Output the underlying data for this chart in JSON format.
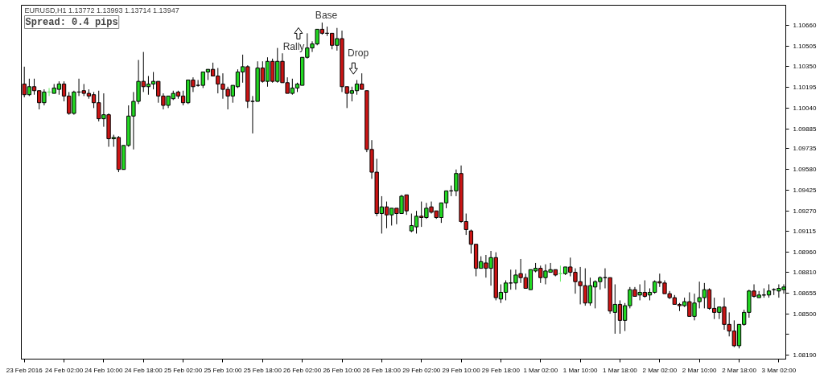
{
  "chart_data": {
    "type": "candlestick",
    "title": "EURUSD,H1  1.13772 1.13993 1.13714 1.13947",
    "annotations": [
      "Spread: 0.4 pips",
      "Base",
      "Rally",
      "Drop"
    ],
    "categories": [
      "23 Feb 2016",
      null,
      null,
      null,
      null,
      null,
      null,
      null,
      "24 Feb 02:00",
      null,
      null,
      null,
      null,
      null,
      null,
      null,
      "24 Feb 10:00",
      null,
      null,
      null,
      null,
      null,
      null,
      null,
      "24 Feb 18:00",
      null,
      null,
      null,
      null,
      null,
      null,
      null,
      "25 Feb 02:00",
      null,
      null,
      null,
      null,
      null,
      null,
      null,
      "25 Feb 10:00",
      null,
      null,
      null,
      null,
      null,
      null,
      null,
      "25 Feb 18:00",
      null,
      null,
      null,
      null,
      null,
      null,
      null,
      "26 Feb 02:00",
      null,
      null,
      null,
      null,
      null,
      null,
      null,
      "26 Feb 10:00",
      null,
      null,
      null,
      null,
      null,
      null,
      null,
      "26 Feb 18:00",
      null,
      null,
      null,
      null,
      null,
      null,
      null,
      "29 Feb 02:00",
      null,
      null,
      null,
      null,
      null,
      null,
      null,
      "29 Feb 10:00",
      null,
      null,
      null,
      null,
      null,
      null,
      null,
      "29 Feb 18:00",
      null,
      null,
      null,
      null,
      null,
      null,
      null,
      "1 Mar 02:00",
      null,
      null,
      null,
      null,
      null,
      null,
      null,
      "1 Mar 10:00",
      null,
      null,
      null,
      null,
      null,
      null,
      null,
      "1 Mar 18:00",
      null,
      null,
      null,
      null,
      null,
      null,
      null,
      "2 Mar 02:00",
      null,
      null,
      null,
      null,
      null,
      null,
      null,
      "2 Mar 10:00",
      null,
      null,
      null,
      null,
      null,
      null,
      null,
      "2 Mar 18:00",
      null,
      null,
      null,
      null,
      null,
      null,
      null,
      "3 Mar 02:00",
      null
    ],
    "ylim": [
      1.0816,
      1.1081
    ],
    "yticks": [
      {
        "value": 1.1066,
        "label": "1.10660"
      },
      {
        "value": 1.10505,
        "label": "1.10505"
      },
      {
        "value": 1.1035,
        "label": "1.10350"
      },
      {
        "value": 1.10195,
        "label": "1.10195"
      },
      {
        "value": 1.1004,
        "label": "1.10040"
      },
      {
        "value": 1.09885,
        "label": "1.09885"
      },
      {
        "value": 1.09735,
        "label": "1.09735"
      },
      {
        "value": 1.0958,
        "label": "1.09580"
      },
      {
        "value": 1.09425,
        "label": "1.09425"
      },
      {
        "value": 1.0927,
        "label": "1.09270"
      },
      {
        "value": 1.09115,
        "label": "1.09115"
      },
      {
        "value": 1.0896,
        "label": "1.08960"
      },
      {
        "value": 1.0881,
        "label": "1.08810"
      },
      {
        "value": 1.08655,
        "label": "1.08655"
      },
      {
        "value": 1.085,
        "label": "1.08500"
      },
      {
        "value": 1.08345,
        "label": null
      },
      {
        "value": 1.0819,
        "label": "1.08190"
      }
    ],
    "ohlc": [
      [
        1.1022,
        1.1035,
        1.1012,
        1.1014
      ],
      [
        1.1014,
        1.1026,
        1.1013,
        1.102
      ],
      [
        1.102,
        1.1026,
        1.1014,
        1.1017
      ],
      [
        1.1017,
        1.1017,
        1.1003,
        1.1008
      ],
      [
        1.1008,
        1.1018,
        1.1006,
        1.1016
      ],
      [
        1.1016,
        1.1019,
        1.1013,
        1.1016
      ],
      [
        1.1015,
        1.1022,
        1.1015,
        1.1019
      ],
      [
        1.1018,
        1.1024,
        1.1014,
        1.1022
      ],
      [
        1.1022,
        1.1024,
        1.1009,
        1.1013
      ],
      [
        1.1013,
        1.1016,
        1.0999,
        1.1
      ],
      [
        1.1,
        1.1017,
        1.0999,
        1.1016
      ],
      [
        1.1016,
        1.1026,
        1.1013,
        1.1016
      ],
      [
        1.1017,
        1.1022,
        1.1013,
        1.1015
      ],
      [
        1.1015,
        1.1018,
        1.1011,
        1.1013
      ],
      [
        1.1014,
        1.1016,
        1.1004,
        1.1008
      ],
      [
        1.1008,
        1.1017,
        1.0994,
        1.0996
      ],
      [
        1.0996,
        1.1015,
        1.099,
        1.0999
      ],
      [
        1.0999,
        1.1,
        1.0975,
        1.0981
      ],
      [
        1.0981,
        1.0984,
        1.0975,
        1.0982
      ],
      [
        1.0982,
        1.0983,
        1.0956,
        1.0958
      ],
      [
        1.0958,
        1.0976,
        1.0958,
        1.0976
      ],
      [
        1.0976,
        1.1006,
        1.0975,
        1.0998
      ],
      [
        1.0998,
        1.1016,
        1.0973,
        1.1009
      ],
      [
        1.1009,
        1.104,
        1.1007,
        1.1024
      ],
      [
        1.1024,
        1.1046,
        1.1016,
        1.102
      ],
      [
        1.102,
        1.1028,
        1.1014,
        1.1022
      ],
      [
        1.1022,
        1.1031,
        1.1018,
        1.1024
      ],
      [
        1.1024,
        1.1024,
        1.1008,
        1.1013
      ],
      [
        1.1013,
        1.1015,
        1.1003,
        1.1006
      ],
      [
        1.1006,
        1.1013,
        1.1004,
        1.1013
      ],
      [
        1.1011,
        1.1017,
        1.101,
        1.1015
      ],
      [
        1.1016,
        1.1017,
        1.1011,
        1.1013
      ],
      [
        1.1013,
        1.1017,
        1.1006,
        1.1008
      ],
      [
        1.1008,
        1.1025,
        1.1007,
        1.1025
      ],
      [
        1.1025,
        1.1027,
        1.1016,
        1.102
      ],
      [
        1.1021,
        1.1025,
        1.102,
        1.1021
      ],
      [
        1.1021,
        1.1031,
        1.1019,
        1.1031
      ],
      [
        1.1031,
        1.1033,
        1.1025,
        1.1033
      ],
      [
        1.1033,
        1.1038,
        1.1028,
        1.1028
      ],
      [
        1.1028,
        1.1034,
        1.1015,
        1.1022
      ],
      [
        1.1022,
        1.103,
        1.1011,
        1.1018
      ],
      [
        1.1018,
        1.102,
        1.1003,
        1.1013
      ],
      [
        1.1013,
        1.1021,
        1.1008,
        1.1021
      ],
      [
        1.102,
        1.1033,
        1.1019,
        1.1031
      ],
      [
        1.1031,
        1.1044,
        1.1023,
        1.1035
      ],
      [
        1.1035,
        1.1036,
        1.1004,
        1.1009
      ],
      [
        1.1009,
        1.1013,
        1.0985,
        1.1009
      ],
      [
        1.1009,
        1.1039,
        1.1009,
        1.1034
      ],
      [
        1.1034,
        1.1039,
        1.1023,
        1.1024
      ],
      [
        1.1024,
        1.1042,
        1.102,
        1.1039
      ],
      [
        1.1039,
        1.1041,
        1.1023,
        1.1024
      ],
      [
        1.1024,
        1.1049,
        1.1023,
        1.1039
      ],
      [
        1.1039,
        1.1045,
        1.1023,
        1.1023
      ],
      [
        1.1023,
        1.1027,
        1.1015,
        1.1015
      ],
      [
        1.1015,
        1.1026,
        1.1014,
        1.1019
      ],
      [
        1.1019,
        1.1023,
        1.1016,
        1.1022
      ],
      [
        1.1021,
        1.1042,
        1.1021,
        1.1042
      ],
      [
        1.1042,
        1.106,
        1.1041,
        1.1049
      ],
      [
        1.1049,
        1.1054,
        1.1046,
        1.1052
      ],
      [
        1.1052,
        1.1063,
        1.1051,
        1.1063
      ],
      [
        1.1063,
        1.1068,
        1.1059,
        1.106
      ],
      [
        1.106,
        1.1065,
        1.1058,
        1.106
      ],
      [
        1.106,
        1.106,
        1.1048,
        1.1051
      ],
      [
        1.1051,
        1.1064,
        1.1047,
        1.1056
      ],
      [
        1.1056,
        1.1062,
        1.1016,
        1.102
      ],
      [
        1.102,
        1.102,
        1.1004,
        1.1015
      ],
      [
        1.1015,
        1.102,
        1.1009,
        1.1017
      ],
      [
        1.1017,
        1.1025,
        1.1014,
        1.1022
      ],
      [
        1.1022,
        1.103,
        1.1018,
        1.1018
      ],
      [
        1.1017,
        1.1017,
        1.0971,
        1.0973
      ],
      [
        1.0973,
        1.098,
        1.0951,
        1.0956
      ],
      [
        1.0956,
        1.0966,
        1.0923,
        1.0925
      ],
      [
        1.0925,
        1.0938,
        1.091,
        1.093
      ],
      [
        1.093,
        1.0934,
        1.0914,
        1.0924
      ],
      [
        1.0924,
        1.0929,
        1.0916,
        1.0929
      ],
      [
        1.0929,
        1.0929,
        1.0917,
        1.0925
      ],
      [
        1.0925,
        1.0939,
        1.0925,
        1.0938
      ],
      [
        1.0939,
        1.0939,
        1.0924,
        1.0927
      ],
      [
        1.0912,
        1.0925,
        1.0911,
        1.0916
      ],
      [
        1.0915,
        1.0927,
        1.091,
        1.0923
      ],
      [
        1.0923,
        1.0934,
        1.0915,
        1.0922
      ],
      [
        1.0922,
        1.0933,
        1.0921,
        1.0929
      ],
      [
        1.093,
        1.0934,
        1.0925,
        1.0926
      ],
      [
        1.0927,
        1.0927,
        1.0921,
        1.0922
      ],
      [
        1.0922,
        1.0933,
        1.0918,
        1.0933
      ],
      [
        1.0933,
        1.0942,
        1.0929,
        1.0942
      ],
      [
        1.0942,
        1.0946,
        1.0938,
        1.0942
      ],
      [
        1.0942,
        1.0958,
        1.0938,
        1.0955
      ],
      [
        1.0955,
        1.0961,
        1.0918,
        1.0919
      ],
      [
        1.0919,
        1.0925,
        1.0909,
        1.0913
      ],
      [
        1.0912,
        1.0913,
        1.0895,
        1.0902
      ],
      [
        1.0902,
        1.0902,
        1.0878,
        1.0884
      ],
      [
        1.0884,
        1.0893,
        1.0884,
        1.0889
      ],
      [
        1.0888,
        1.0894,
        1.0877,
        1.0884
      ],
      [
        1.0884,
        1.0897,
        1.0871,
        1.0892
      ],
      [
        1.0892,
        1.0896,
        1.086,
        1.0862
      ],
      [
        1.0861,
        1.0872,
        1.0858,
        1.0866
      ],
      [
        1.0866,
        1.0875,
        1.086,
        1.0873
      ],
      [
        1.0873,
        1.0883,
        1.0868,
        1.0873
      ],
      [
        1.0873,
        1.0883,
        1.0868,
        1.0879
      ],
      [
        1.088,
        1.0891,
        1.0873,
        1.0877
      ],
      [
        1.0877,
        1.088,
        1.0869,
        1.0869
      ],
      [
        1.0868,
        1.0883,
        1.0868,
        1.0883
      ],
      [
        1.0882,
        1.0888,
        1.0881,
        1.0884
      ],
      [
        1.0884,
        1.0886,
        1.0873,
        1.0877
      ],
      [
        1.0877,
        1.0887,
        1.0872,
        1.0882
      ],
      [
        1.0881,
        1.0888,
        1.0881,
        1.0883
      ],
      [
        1.0883,
        1.0883,
        1.0878,
        1.0879
      ],
      [
        1.088,
        1.0886,
        1.0874,
        1.088
      ],
      [
        1.088,
        1.0885,
        1.0879,
        1.0885
      ],
      [
        1.0885,
        1.0892,
        1.0878,
        1.0881
      ],
      [
        1.0881,
        1.0884,
        1.0865,
        1.0874
      ],
      [
        1.0874,
        1.0885,
        1.0857,
        1.0871
      ],
      [
        1.0871,
        1.0884,
        1.0856,
        1.0858
      ],
      [
        1.0858,
        1.0877,
        1.0856,
        1.0871
      ],
      [
        1.087,
        1.0875,
        1.0854,
        1.0874
      ],
      [
        1.0874,
        1.0878,
        1.0868,
        1.0877
      ],
      [
        1.0877,
        1.0884,
        1.0869,
        1.0877
      ],
      [
        1.0877,
        1.0877,
        1.085,
        1.0852
      ],
      [
        1.0851,
        1.0872,
        1.0835,
        1.0857
      ],
      [
        1.0857,
        1.086,
        1.0835,
        1.0845
      ],
      [
        1.0845,
        1.0858,
        1.0837,
        1.0856
      ],
      [
        1.0856,
        1.087,
        1.0854,
        1.0868
      ],
      [
        1.0868,
        1.087,
        1.0863,
        1.0863
      ],
      [
        1.0864,
        1.0872,
        1.086,
        1.0866
      ],
      [
        1.0866,
        1.0875,
        1.0862,
        1.0863
      ],
      [
        1.0864,
        1.0869,
        1.086,
        1.0866
      ],
      [
        1.0866,
        1.0875,
        1.0865,
        1.0874
      ],
      [
        1.0874,
        1.088,
        1.087,
        1.0873
      ],
      [
        1.0873,
        1.0875,
        1.0865,
        1.0865
      ],
      [
        1.0865,
        1.0867,
        1.0861,
        1.0862
      ],
      [
        1.0862,
        1.0864,
        1.0857,
        1.0857
      ],
      [
        1.0857,
        1.0858,
        1.0852,
        1.0856
      ],
      [
        1.0856,
        1.0862,
        1.0855,
        1.0859
      ],
      [
        1.0859,
        1.0866,
        1.0848,
        1.0848
      ],
      [
        1.0848,
        1.0865,
        1.0845,
        1.0858
      ],
      [
        1.0859,
        1.0874,
        1.0854,
        1.0862
      ],
      [
        1.0862,
        1.0873,
        1.0854,
        1.0868
      ],
      [
        1.0868,
        1.0869,
        1.0853,
        1.0854
      ],
      [
        1.0854,
        1.0862,
        1.0846,
        1.0851
      ],
      [
        1.0851,
        1.0855,
        1.0846,
        1.0855
      ],
      [
        1.0855,
        1.0862,
        1.0838,
        1.0842
      ],
      [
        1.0842,
        1.0851,
        1.0833,
        1.0837
      ],
      [
        1.0837,
        1.0845,
        1.0825,
        1.0826
      ],
      [
        1.0826,
        1.0842,
        1.0824,
        1.0842
      ],
      [
        1.0842,
        1.0853,
        1.0841,
        1.0851
      ],
      [
        1.0851,
        1.0868,
        1.0847,
        1.0867
      ],
      [
        1.0867,
        1.0872,
        1.0862,
        1.0863
      ],
      [
        1.0862,
        1.0867,
        1.0862,
        1.0864
      ],
      [
        1.0864,
        1.0869,
        1.0862,
        1.0864
      ],
      [
        1.0864,
        1.0872,
        1.0862,
        1.0867
      ],
      [
        1.0868,
        1.0869,
        1.0864,
        1.0868
      ],
      [
        1.0867,
        1.0872,
        1.0862,
        1.0869
      ],
      [
        1.0868,
        1.0872,
        1.0865,
        1.087
      ]
    ],
    "colors": [
      "#cc1414",
      "#22d822",
      "#cc1414",
      "#cc1414",
      "#22d822",
      "#66ee66",
      "#22d822",
      "#22d822",
      "#cc1414",
      "#cc1414",
      "#22d822",
      "#000000",
      "#cc1414",
      "#cc1414",
      "#cc1414",
      "#cc1414",
      "#22d822",
      "#cc1414",
      "#22d822",
      "#cc1414",
      "#22d822",
      "#22d822",
      "#22d822",
      "#22d822",
      "#cc1414",
      "#22d822",
      "#22d822",
      "#cc1414",
      "#cc1414",
      "#22d822",
      "#22d822",
      "#cc1414",
      "#cc1414",
      "#22d822",
      "#cc1414",
      "#000000",
      "#22d822",
      "#22d822",
      "#cc1414",
      "#cc1414",
      "#cc1414",
      "#cc1414",
      "#22d822",
      "#22d822",
      "#22d822",
      "#cc1414",
      "#000000",
      "#22d822",
      "#cc1414",
      "#22d822",
      "#cc1414",
      "#22d822",
      "#cc1414",
      "#cc1414",
      "#22d822",
      "#22d822",
      "#22d822",
      "#22d822",
      "#22d822",
      "#22d822",
      "#cc1414",
      "#000000",
      "#cc1414",
      "#22d822",
      "#cc1414",
      "#cc1414",
      "#22d822",
      "#22d822",
      "#cc1414",
      "#cc1414",
      "#cc1414",
      "#cc1414",
      "#22d822",
      "#cc1414",
      "#22d822",
      "#cc1414",
      "#22d822",
      "#cc1414",
      "#22d822",
      "#22d822",
      "#cc1414",
      "#22d822",
      "#cc1414",
      "#cc1414",
      "#22d822",
      "#22d822",
      "#000000",
      "#22d822",
      "#cc1414",
      "#cc1414",
      "#cc1414",
      "#cc1414",
      "#22d822",
      "#cc1414",
      "#22d822",
      "#cc1414",
      "#22d822",
      "#22d822",
      "#000000",
      "#22d822",
      "#cc1414",
      "#cc1414",
      "#22d822",
      "#22d822",
      "#cc1414",
      "#22d822",
      "#22d822",
      "#cc1414",
      "#66ee66",
      "#22d822",
      "#cc1414",
      "#cc1414",
      "#cc1414",
      "#cc1414",
      "#22d822",
      "#22d822",
      "#22d822",
      "#000000",
      "#cc1414",
      "#22d822",
      "#cc1414",
      "#22d822",
      "#22d822",
      "#cc1414",
      "#22d822",
      "#cc1414",
      "#22d822",
      "#22d822",
      "#cc1414",
      "#cc1414",
      "#cc1414",
      "#cc1414",
      "#cc1414",
      "#22d822",
      "#cc1414",
      "#22d822",
      "#22d822",
      "#22d822",
      "#cc1414",
      "#cc1414",
      "#22d822",
      "#cc1414",
      "#cc1414",
      "#cc1414",
      "#22d822",
      "#22d822",
      "#22d822",
      "#cc1414",
      "#22d822",
      "#000000",
      "#22d822",
      "#000000",
      "#22d822",
      "#22d822"
    ]
  }
}
